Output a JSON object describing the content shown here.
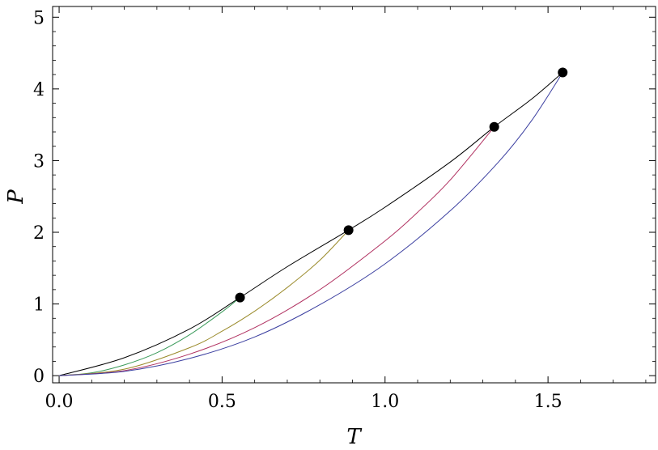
{
  "chart_data": {
    "type": "line",
    "title": "",
    "xlabel": "T",
    "ylabel": "P",
    "xlim": [
      -0.02,
      1.83
    ],
    "ylim": [
      -0.1,
      5.15
    ],
    "x_ticks": [
      {
        "value": 0.0,
        "label": "0.0"
      },
      {
        "value": 0.5,
        "label": "0.5"
      },
      {
        "value": 1.0,
        "label": "1.0"
      },
      {
        "value": 1.5,
        "label": "1.5"
      }
    ],
    "y_ticks": [
      {
        "value": 0,
        "label": "0"
      },
      {
        "value": 1,
        "label": "1"
      },
      {
        "value": 2,
        "label": "2"
      },
      {
        "value": 3,
        "label": "3"
      },
      {
        "value": 4,
        "label": "4"
      },
      {
        "value": 5,
        "label": "5"
      }
    ],
    "grid": false,
    "series": [
      {
        "color": "#000000",
        "x": [
          0.0,
          0.2,
          0.4,
          0.555,
          0.7,
          0.888,
          1.0,
          1.2,
          1.335,
          1.45,
          1.545
        ],
        "y": [
          0.0,
          0.25,
          0.65,
          1.09,
          1.52,
          2.03,
          2.35,
          2.98,
          3.47,
          3.86,
          4.23
        ]
      },
      {
        "color": "#3a9a5a",
        "x": [
          0.0,
          0.1,
          0.2,
          0.3,
          0.4,
          0.5,
          0.555
        ],
        "y": [
          0.0,
          0.04,
          0.15,
          0.32,
          0.57,
          0.89,
          1.09
        ]
      },
      {
        "color": "#9a8a2a",
        "x": [
          0.0,
          0.2,
          0.4,
          0.5,
          0.6,
          0.7,
          0.8,
          0.888
        ],
        "y": [
          0.0,
          0.09,
          0.39,
          0.62,
          0.9,
          1.23,
          1.61,
          2.03
        ]
      },
      {
        "color": "#b03060",
        "x": [
          0.0,
          0.2,
          0.4,
          0.6,
          0.8,
          1.0,
          1.1,
          1.2,
          1.335
        ],
        "y": [
          0.0,
          0.07,
          0.3,
          0.67,
          1.2,
          1.88,
          2.28,
          2.73,
          3.47
        ]
      },
      {
        "color": "#3b3fa0",
        "x": [
          0.0,
          0.2,
          0.4,
          0.6,
          0.8,
          1.0,
          1.2,
          1.35,
          1.45,
          1.545
        ],
        "y": [
          0.0,
          0.06,
          0.24,
          0.54,
          0.99,
          1.56,
          2.3,
          2.99,
          3.56,
          4.23
        ]
      }
    ],
    "points": [
      {
        "x": 0.555,
        "y": 1.09
      },
      {
        "x": 0.888,
        "y": 2.03
      },
      {
        "x": 1.335,
        "y": 3.47
      },
      {
        "x": 1.545,
        "y": 4.23
      }
    ]
  }
}
